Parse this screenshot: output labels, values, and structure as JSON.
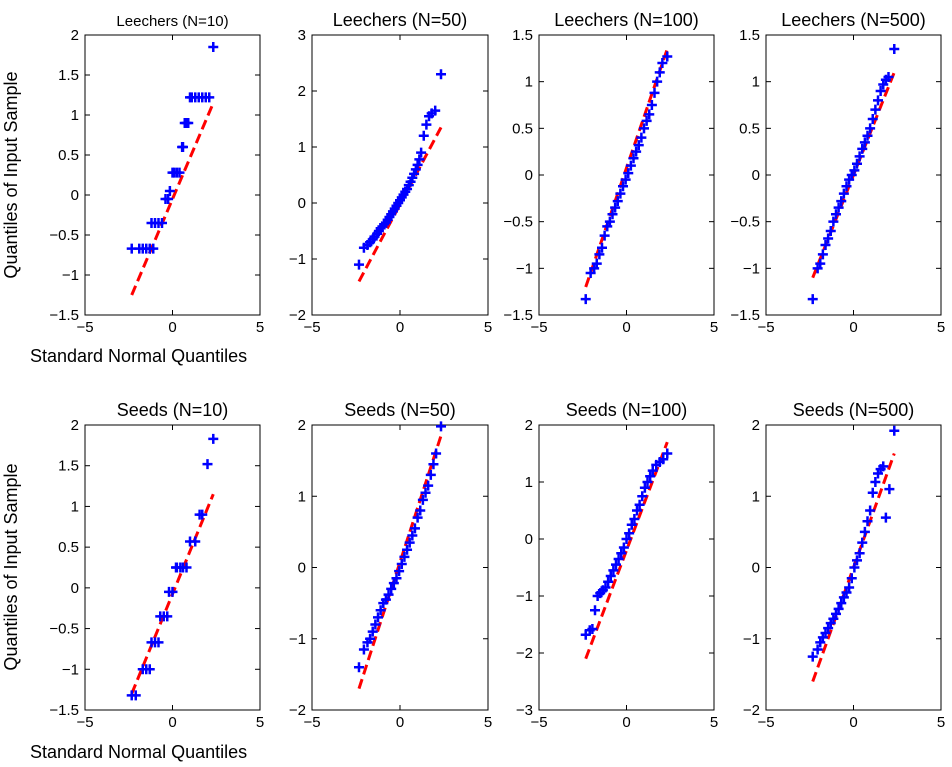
{
  "figure": {
    "ylabel": "Quantiles of Input Sample",
    "xlabel": "Standard Normal Quantiles",
    "colors": {
      "points": "#0000ff",
      "ref_line": "#ff0000",
      "axes": "#000000"
    }
  },
  "chart_data": [
    {
      "type": "scatter",
      "title": "Leechers (N=10)",
      "small_title": true,
      "xlim": [
        -5,
        5
      ],
      "ylim": [
        -1.5,
        2
      ],
      "xticks": [
        -5,
        0,
        5
      ],
      "xtick_labels": [
        "−5",
        "0",
        "5"
      ],
      "yticks": [
        -1.5,
        -1,
        -0.5,
        0,
        0.5,
        1,
        1.5,
        2
      ],
      "ytick_labels": [
        "−1.5",
        "−1",
        "−0.5",
        "0",
        "0.5",
        "1",
        "1.5",
        "2"
      ],
      "ref_line": {
        "x": [
          -2.33,
          2.33
        ],
        "y": [
          -1.25,
          1.15
        ]
      },
      "points": {
        "x": [
          -2.33,
          -1.9,
          -1.7,
          -1.5,
          -1.3,
          -1.1,
          -1.2,
          -1.0,
          -0.8,
          -0.6,
          -0.4,
          -0.25,
          -0.15,
          0.0,
          0.1,
          0.25,
          0.4,
          0.55,
          0.6,
          0.7,
          0.8,
          0.9,
          1.0,
          1.1,
          1.3,
          1.5,
          1.7,
          1.9,
          2.1,
          2.33
        ],
        "y": [
          -0.67,
          -0.67,
          -0.67,
          -0.67,
          -0.67,
          -0.67,
          -0.35,
          -0.35,
          -0.35,
          -0.35,
          -0.05,
          -0.05,
          0.05,
          0.28,
          0.28,
          0.28,
          0.28,
          0.6,
          0.6,
          0.9,
          0.9,
          0.9,
          1.22,
          1.22,
          1.22,
          1.22,
          1.22,
          1.22,
          1.22,
          1.85
        ]
      }
    },
    {
      "type": "scatter",
      "title": "Leechers (N=50)",
      "xlim": [
        -5,
        5
      ],
      "ylim": [
        -2,
        3
      ],
      "xticks": [
        -5,
        0,
        5
      ],
      "xtick_labels": [
        "−5",
        "0",
        "5"
      ],
      "yticks": [
        -2,
        -1,
        0,
        1,
        2,
        3
      ],
      "ytick_labels": [
        "−2",
        "−1",
        "0",
        "1",
        "2",
        "3"
      ],
      "ref_line": {
        "x": [
          -2.33,
          2.33
        ],
        "y": [
          -1.4,
          1.35
        ]
      },
      "points": {
        "x": [
          -2.33,
          -2.05,
          -1.85,
          -1.7,
          -1.55,
          -1.45,
          -1.3,
          -1.2,
          -1.1,
          -1.0,
          -0.9,
          -0.8,
          -0.7,
          -0.6,
          -0.5,
          -0.4,
          -0.3,
          -0.2,
          -0.1,
          0.0,
          0.1,
          0.2,
          0.3,
          0.4,
          0.5,
          0.6,
          0.7,
          0.8,
          0.9,
          1.0,
          1.1,
          1.2,
          1.35,
          1.5,
          1.65,
          1.8,
          2.0,
          2.33
        ],
        "y": [
          -1.1,
          -0.8,
          -0.75,
          -0.7,
          -0.65,
          -0.6,
          -0.55,
          -0.5,
          -0.45,
          -0.42,
          -0.38,
          -0.35,
          -0.3,
          -0.25,
          -0.2,
          -0.15,
          -0.1,
          -0.05,
          0.0,
          0.05,
          0.1,
          0.15,
          0.2,
          0.25,
          0.32,
          0.38,
          0.45,
          0.52,
          0.6,
          0.68,
          0.78,
          0.9,
          1.2,
          1.4,
          1.55,
          1.6,
          1.65,
          2.3
        ]
      }
    },
    {
      "type": "scatter",
      "title": "Leechers (N=100)",
      "xlim": [
        -5,
        5
      ],
      "ylim": [
        -1.5,
        1.5
      ],
      "xticks": [
        -5,
        0,
        5
      ],
      "xtick_labels": [
        "−5",
        "0",
        "5"
      ],
      "yticks": [
        -1.5,
        -1,
        -0.5,
        0,
        0.5,
        1,
        1.5
      ],
      "ytick_labels": [
        "−1.5",
        "−1",
        "−0.5",
        "0",
        "0.5",
        "1",
        "1.5"
      ],
      "ref_line": {
        "x": [
          -2.33,
          2.33
        ],
        "y": [
          -1.2,
          1.35
        ]
      },
      "points": {
        "x": [
          -2.33,
          -2.05,
          -1.85,
          -1.7,
          -1.55,
          -1.4,
          -1.25,
          -1.1,
          -0.95,
          -0.8,
          -0.65,
          -0.5,
          -0.35,
          -0.2,
          -0.05,
          0.1,
          0.25,
          0.4,
          0.55,
          0.7,
          0.85,
          1.0,
          1.15,
          1.3,
          1.45,
          1.6,
          1.75,
          1.9,
          2.05,
          2.33
        ],
        "y": [
          -1.33,
          -1.05,
          -1.0,
          -0.95,
          -0.85,
          -0.78,
          -0.65,
          -0.55,
          -0.5,
          -0.42,
          -0.35,
          -0.28,
          -0.2,
          -0.12,
          -0.05,
          0.02,
          0.1,
          0.18,
          0.25,
          0.32,
          0.4,
          0.5,
          0.58,
          0.65,
          0.75,
          0.88,
          1.0,
          1.1,
          1.2,
          1.27
        ]
      }
    },
    {
      "type": "scatter",
      "title": "Leechers (N=500)",
      "xlim": [
        -5,
        5
      ],
      "ylim": [
        -1.5,
        1.5
      ],
      "xticks": [
        -5,
        0,
        5
      ],
      "xtick_labels": [
        "−5",
        "0",
        "5"
      ],
      "yticks": [
        -1.5,
        -1,
        -0.5,
        0,
        0.5,
        1,
        1.5
      ],
      "ytick_labels": [
        "−1.5",
        "−1",
        "−0.5",
        "0",
        "0.5",
        "1",
        "1.5"
      ],
      "ref_line": {
        "x": [
          -2.33,
          2.33
        ],
        "y": [
          -1.1,
          1.1
        ]
      },
      "points": {
        "x": [
          -2.33,
          -2.05,
          -1.9,
          -1.75,
          -1.6,
          -1.45,
          -1.3,
          -1.15,
          -1.0,
          -0.85,
          -0.7,
          -0.55,
          -0.4,
          -0.25,
          -0.1,
          0.05,
          0.2,
          0.35,
          0.5,
          0.65,
          0.8,
          0.95,
          1.1,
          1.25,
          1.4,
          1.55,
          1.7,
          1.85,
          2.0,
          2.33
        ],
        "y": [
          -1.33,
          -1.0,
          -0.95,
          -0.85,
          -0.75,
          -0.68,
          -0.6,
          -0.5,
          -0.42,
          -0.35,
          -0.28,
          -0.2,
          -0.12,
          -0.05,
          0.0,
          0.05,
          0.12,
          0.2,
          0.28,
          0.35,
          0.42,
          0.5,
          0.6,
          0.7,
          0.8,
          0.9,
          0.97,
          1.02,
          1.05,
          1.35
        ]
      }
    },
    {
      "type": "scatter",
      "title": "Seeds (N=10)",
      "xlim": [
        -5,
        5
      ],
      "ylim": [
        -1.5,
        2
      ],
      "xticks": [
        -5,
        0,
        5
      ],
      "xtick_labels": [
        "−5",
        "0",
        "5"
      ],
      "yticks": [
        -1.5,
        -1,
        -0.5,
        0,
        0.5,
        1,
        1.5,
        2
      ],
      "ytick_labels": [
        "−1.5",
        "−1",
        "−0.5",
        "0",
        "0.5",
        "1",
        "1.5",
        "2"
      ],
      "ref_line": {
        "x": [
          -2.33,
          2.33
        ],
        "y": [
          -1.3,
          1.15
        ]
      },
      "points": {
        "x": [
          -2.33,
          -2.1,
          -1.7,
          -1.5,
          -1.3,
          -1.2,
          -1.0,
          -0.8,
          -0.7,
          -0.5,
          -0.3,
          -0.2,
          0.0,
          0.2,
          0.25,
          0.45,
          0.6,
          0.8,
          1.0,
          1.3,
          1.55,
          1.7,
          2.0,
          2.33
        ],
        "y": [
          -1.32,
          -1.32,
          -1.0,
          -1.0,
          -1.0,
          -0.67,
          -0.67,
          -0.67,
          -0.35,
          -0.35,
          -0.35,
          -0.05,
          -0.05,
          0.25,
          0.25,
          0.25,
          0.25,
          0.25,
          0.57,
          0.57,
          0.9,
          0.9,
          1.52,
          1.83
        ]
      }
    },
    {
      "type": "scatter",
      "title": "Seeds (N=50)",
      "xlim": [
        -5,
        5
      ],
      "ylim": [
        -2,
        2
      ],
      "xticks": [
        -5,
        0,
        5
      ],
      "xtick_labels": [
        "−5",
        "0",
        "5"
      ],
      "yticks": [
        -2,
        -1,
        0,
        1,
        2
      ],
      "ytick_labels": [
        "−2",
        "−1",
        "0",
        "1",
        "2"
      ],
      "ref_line": {
        "x": [
          -2.33,
          2.33
        ],
        "y": [
          -1.7,
          1.85
        ]
      },
      "points": {
        "x": [
          -2.33,
          -2.05,
          -1.85,
          -1.7,
          -1.55,
          -1.4,
          -1.25,
          -1.1,
          -0.95,
          -0.8,
          -0.65,
          -0.5,
          -0.35,
          -0.2,
          -0.05,
          0.1,
          0.25,
          0.4,
          0.55,
          0.7,
          0.85,
          1.0,
          1.15,
          1.3,
          1.45,
          1.6,
          1.75,
          1.9,
          2.05,
          2.33
        ],
        "y": [
          -1.4,
          -1.15,
          -1.05,
          -1.0,
          -0.9,
          -0.8,
          -0.7,
          -0.6,
          -0.5,
          -0.45,
          -0.38,
          -0.3,
          -0.22,
          -0.15,
          -0.05,
          0.05,
          0.15,
          0.25,
          0.35,
          0.45,
          0.55,
          0.7,
          0.8,
          0.95,
          1.05,
          1.15,
          1.3,
          1.45,
          1.6,
          1.98
        ]
      }
    },
    {
      "type": "scatter",
      "title": "Seeds (N=100)",
      "xlim": [
        -5,
        5
      ],
      "ylim": [
        -3,
        2
      ],
      "xticks": [
        -5,
        0,
        5
      ],
      "xtick_labels": [
        "−5",
        "0",
        "5"
      ],
      "yticks": [
        -3,
        -2,
        -1,
        0,
        1,
        2
      ],
      "ytick_labels": [
        "−3",
        "−2",
        "−1",
        "0",
        "1",
        "2"
      ],
      "ref_line": {
        "x": [
          -2.33,
          2.33
        ],
        "y": [
          -2.1,
          1.7
        ]
      },
      "points": {
        "x": [
          -2.33,
          -2.1,
          -1.95,
          -1.8,
          -1.65,
          -1.5,
          -1.35,
          -1.2,
          -1.05,
          -0.9,
          -0.75,
          -0.6,
          -0.45,
          -0.3,
          -0.15,
          0.0,
          0.15,
          0.3,
          0.45,
          0.6,
          0.75,
          0.9,
          1.05,
          1.2,
          1.35,
          1.5,
          1.7,
          1.9,
          2.1,
          2.33
        ],
        "y": [
          -1.68,
          -1.6,
          -1.58,
          -1.25,
          -1.0,
          -0.95,
          -0.9,
          -0.85,
          -0.75,
          -0.65,
          -0.55,
          -0.45,
          -0.35,
          -0.25,
          -0.15,
          0.0,
          0.1,
          0.25,
          0.35,
          0.5,
          0.6,
          0.75,
          0.9,
          1.0,
          1.1,
          1.2,
          1.3,
          1.35,
          1.4,
          1.5
        ]
      }
    },
    {
      "type": "scatter",
      "title": "Seeds (N=500)",
      "xlim": [
        -5,
        5
      ],
      "ylim": [
        -2,
        2
      ],
      "xticks": [
        -5,
        0,
        5
      ],
      "xtick_labels": [
        "−5",
        "0",
        "5"
      ],
      "yticks": [
        -2,
        -1,
        0,
        1,
        2
      ],
      "ytick_labels": [
        "−2",
        "−1",
        "0",
        "1",
        "2"
      ],
      "ref_line": {
        "x": [
          -2.33,
          2.33
        ],
        "y": [
          -1.6,
          1.6
        ]
      },
      "points": {
        "x": [
          -2.33,
          -2.05,
          -1.9,
          -1.75,
          -1.6,
          -1.45,
          -1.3,
          -1.15,
          -1.0,
          -0.85,
          -0.7,
          -0.55,
          -0.4,
          -0.25,
          -0.1,
          0.05,
          0.2,
          0.35,
          0.5,
          0.65,
          0.8,
          0.95,
          1.1,
          1.25,
          1.4,
          1.55,
          1.7,
          1.85,
          2.05,
          2.33
        ],
        "y": [
          -1.25,
          -1.15,
          -1.05,
          -0.98,
          -0.92,
          -0.85,
          -0.78,
          -0.72,
          -0.65,
          -0.58,
          -0.5,
          -0.42,
          -0.35,
          -0.28,
          -0.15,
          0.0,
          0.1,
          0.2,
          0.35,
          0.5,
          0.65,
          0.8,
          1.05,
          1.2,
          1.32,
          1.38,
          1.42,
          0.7,
          1.1,
          1.92
        ]
      }
    }
  ]
}
